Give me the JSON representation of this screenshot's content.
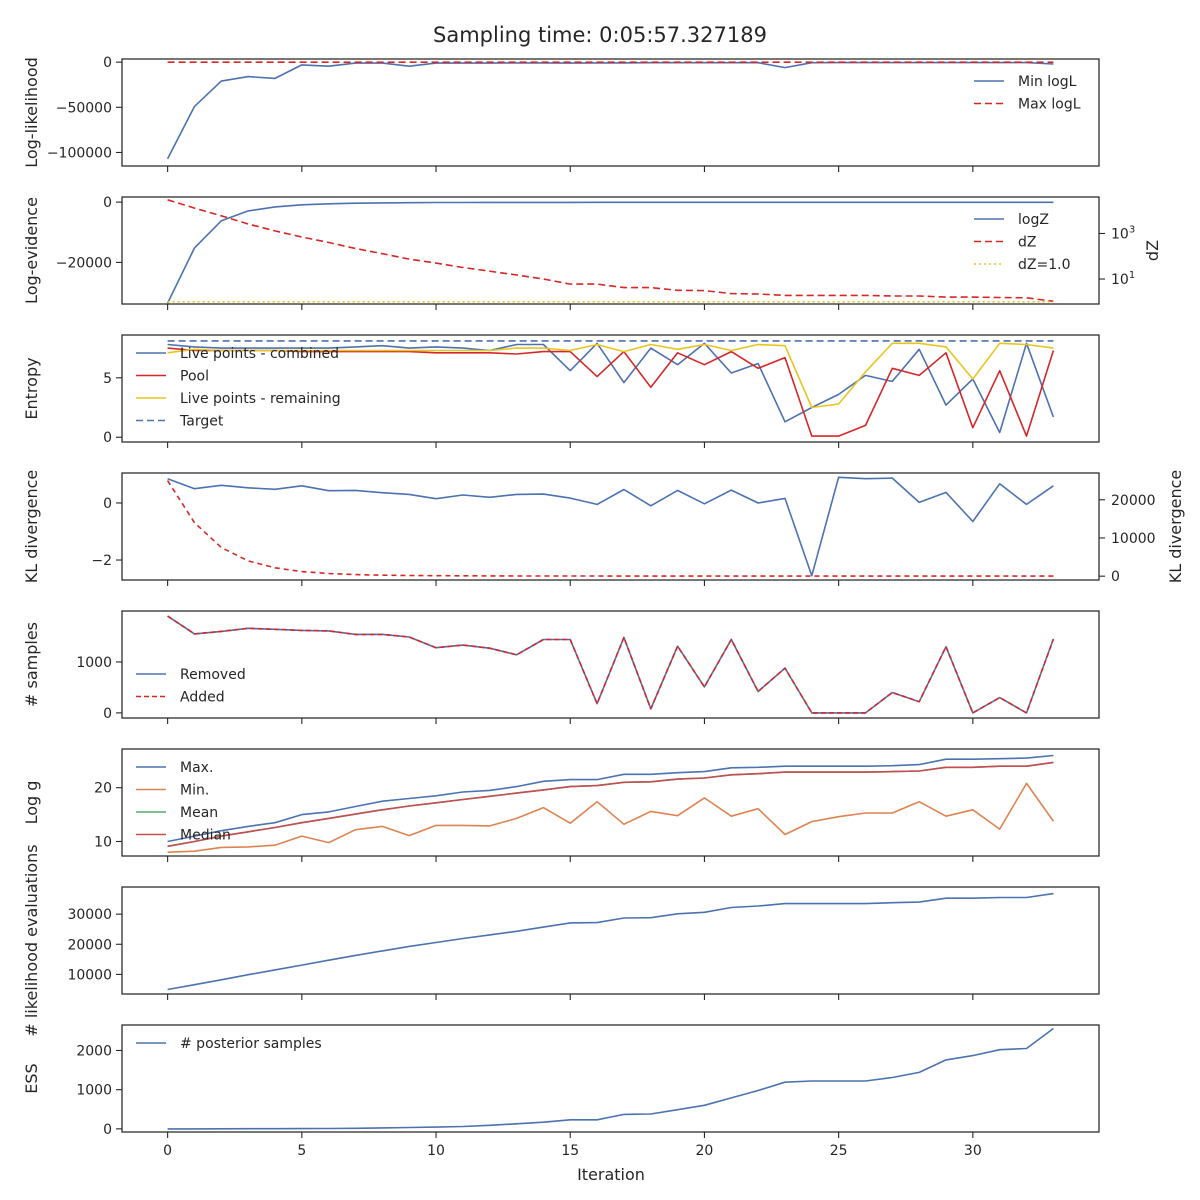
{
  "chart_data": {
    "type": "line",
    "title": "Sampling time: 0:05:57.327189",
    "xlabel": "Iteration",
    "x_ticks": [
      0,
      5,
      10,
      15,
      20,
      25,
      30
    ],
    "xlim": [
      -1.7,
      34.7
    ],
    "x": [
      0,
      1,
      2,
      3,
      4,
      5,
      6,
      7,
      8,
      9,
      10,
      11,
      12,
      13,
      14,
      15,
      16,
      17,
      18,
      19,
      20,
      21,
      22,
      23,
      24,
      25,
      26,
      27,
      28,
      29,
      30,
      31,
      32,
      33
    ],
    "panels": [
      {
        "ylabel": "Log-likelihood",
        "ylim": [
          -115000,
          3500
        ],
        "yticks": [
          {
            "v": 0,
            "t": "0"
          },
          {
            "v": -50000,
            "t": "−50000"
          },
          {
            "v": -100000,
            "t": "−100000"
          }
        ],
        "legend_pos": "right",
        "series": [
          {
            "name": "Min logL",
            "color": "#4c72b0",
            "dash": "",
            "values": [
              -107000,
              -49000,
              -21000,
              -16000,
              -18000,
              -3000,
              -4500,
              -1000,
              -1000,
              -4500,
              -1000,
              -1000,
              -1000,
              -800,
              -800,
              -1000,
              -800,
              -800,
              -600,
              -600,
              -600,
              -600,
              -600,
              -6000,
              -600,
              -500,
              -500,
              -500,
              -500,
              -500,
              -500,
              -500,
              -500,
              -2000
            ]
          },
          {
            "name": "Max logL",
            "color": "#d62728",
            "dash": "7,4",
            "values": [
              0,
              0,
              0,
              0,
              0,
              0,
              0,
              0,
              0,
              0,
              0,
              0,
              0,
              0,
              0,
              0,
              0,
              0,
              0,
              0,
              0,
              0,
              0,
              0,
              0,
              0,
              0,
              0,
              0,
              0,
              0,
              0,
              0,
              0
            ]
          }
        ]
      },
      {
        "ylabel": "Log-evidence",
        "ylim": [
          -33800,
          1700
        ],
        "yticks": [
          {
            "v": 0,
            "t": "0"
          },
          {
            "v": -20000,
            "t": "−20000"
          }
        ],
        "ylabel2": "dZ",
        "ylog2": true,
        "ylim2": [
          0.8,
          40000
        ],
        "yticks2": [
          {
            "v": 1000,
            "b": "10",
            "e": "3"
          },
          {
            "v": 10,
            "b": "10",
            "e": "1"
          }
        ],
        "legend_pos": "right",
        "series": [
          {
            "name": "logZ",
            "color": "#4c72b0",
            "dash": "",
            "values": [
              -33500,
              -15200,
              -6200,
              -2900,
              -1600,
              -900,
              -550,
              -350,
              -250,
              -180,
              -140,
              -120,
              -100,
              -90,
              -80,
              -75,
              -70,
              -65,
              -60,
              -58,
              -56,
              -54,
              -52,
              -51,
              -50,
              -50,
              -50,
              -50,
              -50,
              -50,
              -50,
              -50,
              -50,
              -50
            ]
          },
          {
            "name": "dZ",
            "color": "#d62728",
            "dash": "7,4",
            "axis": 2,
            "values": [
              30000,
              13000,
              6000,
              2600,
              1300,
              700,
              400,
              220,
              130,
              75,
              50,
              32,
              22,
              15,
              10,
              6,
              6,
              4.2,
              4.2,
              3.2,
              3.1,
              2.3,
              2.2,
              1.9,
              1.9,
              1.9,
              1.9,
              1.8,
              1.8,
              1.6,
              1.6,
              1.55,
              1.5,
              1.05
            ]
          },
          {
            "name": "dZ=1.0",
            "color": "#e8c51e",
            "dash": "2,3",
            "axis": 2,
            "values": [
              1,
              1,
              1,
              1,
              1,
              1,
              1,
              1,
              1,
              1,
              1,
              1,
              1,
              1,
              1,
              1,
              1,
              1,
              1,
              1,
              1,
              1,
              1,
              1,
              1,
              1,
              1,
              1,
              1,
              1,
              1,
              1,
              1,
              1
            ]
          }
        ]
      },
      {
        "ylabel": "Entropy",
        "ylim": [
          -0.4,
          8.6
        ],
        "yticks": [
          {
            "v": 5,
            "t": "5"
          },
          {
            "v": 0,
            "t": "0"
          }
        ],
        "legend_pos": "left",
        "series": [
          {
            "name": "Live points - combined",
            "color": "#4c72b0",
            "dash": "",
            "values": [
              7.8,
              7.6,
              7.5,
              7.5,
              7.5,
              7.5,
              7.5,
              7.6,
              7.7,
              7.5,
              7.6,
              7.5,
              7.3,
              7.8,
              7.8,
              5.6,
              7.9,
              4.6,
              7.5,
              6.1,
              7.9,
              5.4,
              6.2,
              1.3,
              2.5,
              3.6,
              5.2,
              4.7,
              7.4,
              2.7,
              4.9,
              0.4,
              7.9,
              1.7
            ]
          },
          {
            "name": "Pool",
            "color": "#d62728",
            "dash": "",
            "values": [
              7.5,
              7.3,
              7.3,
              7.3,
              7.3,
              7.2,
              7.2,
              7.2,
              7.2,
              7.2,
              7.1,
              7.1,
              7.1,
              7.0,
              7.2,
              7.2,
              5.1,
              7.2,
              4.2,
              7.1,
              6.1,
              7.2,
              5.8,
              6.7,
              0.1,
              0.1,
              1.0,
              5.8,
              5.2,
              7.1,
              0.8,
              5.6,
              0.1,
              7.3
            ]
          },
          {
            "name": "Live points - remaining",
            "color": "#e8c51e",
            "dash": "",
            "values": [
              7.1,
              7.4,
              7.3,
              7.3,
              7.3,
              7.3,
              7.3,
              7.3,
              7.3,
              7.3,
              7.3,
              7.3,
              7.3,
              7.5,
              7.5,
              7.3,
              7.8,
              7.2,
              7.8,
              7.4,
              7.8,
              7.3,
              7.8,
              7.7,
              2.5,
              2.8,
              5.5,
              7.9,
              7.9,
              7.6,
              4.9,
              7.9,
              7.8,
              7.5
            ]
          },
          {
            "name": "Target",
            "color": "#4c72b0",
            "dash": "7,4",
            "values": [
              8.1,
              8.1,
              8.1,
              8.1,
              8.1,
              8.1,
              8.1,
              8.1,
              8.1,
              8.1,
              8.1,
              8.1,
              8.1,
              8.1,
              8.1,
              8.1,
              8.1,
              8.1,
              8.1,
              8.1,
              8.1,
              8.1,
              8.1,
              8.1,
              8.1,
              8.1,
              8.1,
              8.1,
              8.1,
              8.1,
              8.1,
              8.1,
              8.1,
              8.1
            ]
          }
        ]
      },
      {
        "ylabel": "KL divergence",
        "ylim": [
          -2.7,
          1.05
        ],
        "yticks": [
          {
            "v": 0,
            "t": "0"
          },
          {
            "v": -2,
            "t": "−2"
          }
        ],
        "ylabel2": "KL divergence",
        "ylim2": [
          -1000,
          27000
        ],
        "yticks2": [
          {
            "v": 20000,
            "t": "20000"
          },
          {
            "v": 10000,
            "t": "10000"
          },
          {
            "v": 0,
            "t": "0"
          }
        ],
        "series": [
          {
            "name": "",
            "color": "#4c72b0",
            "dash": "",
            "values": [
              0.85,
              0.5,
              0.62,
              0.53,
              0.48,
              0.6,
              0.43,
              0.44,
              0.36,
              0.3,
              0.15,
              0.28,
              0.2,
              0.3,
              0.31,
              0.17,
              -0.05,
              0.47,
              -0.1,
              0.44,
              -0.03,
              0.45,
              0.0,
              0.16,
              -2.55,
              0.9,
              0.85,
              0.87,
              0.02,
              0.37,
              -0.65,
              0.67,
              -0.05,
              0.6
            ]
          },
          {
            "name": "",
            "color": "#d62728",
            "dash": "5,4",
            "axis": 2,
            "values": [
              25000,
              14000,
              7500,
              4000,
              2200,
              1200,
              700,
              400,
              250,
              170,
              120,
              90,
              70,
              55,
              45,
              40,
              35,
              30,
              28,
              26,
              25,
              24,
              23,
              22,
              21,
              21,
              20,
              20,
              20,
              19,
              19,
              19,
              19,
              18
            ]
          }
        ]
      },
      {
        "ylabel": "# samples",
        "ylim": [
          -100,
          2000
        ],
        "yticks": [
          {
            "v": 1000,
            "t": "1000"
          },
          {
            "v": 0,
            "t": "0"
          }
        ],
        "legend_pos": "left-mid",
        "series": [
          {
            "name": "Removed",
            "color": "#4c72b0",
            "dash": "",
            "values": [
              1900,
              1550,
              1600,
              1660,
              1640,
              1620,
              1610,
              1540,
              1540,
              1490,
              1280,
              1330,
              1270,
              1140,
              1440,
              1440,
              180,
              1480,
              80,
              1310,
              510,
              1440,
              420,
              880,
              0,
              0,
              0,
              400,
              220,
              1300,
              0,
              300,
              0,
              1450
            ]
          },
          {
            "name": "Added",
            "color": "#d62728",
            "dash": "5,3",
            "values": [
              1900,
              1550,
              1600,
              1660,
              1640,
              1620,
              1610,
              1540,
              1540,
              1490,
              1280,
              1330,
              1270,
              1140,
              1440,
              1440,
              180,
              1480,
              80,
              1310,
              510,
              1440,
              420,
              880,
              0,
              0,
              0,
              400,
              220,
              1300,
              0,
              300,
              0,
              1450
            ]
          }
        ]
      },
      {
        "ylabel": "Log g",
        "ylim": [
          7.3,
          27.2
        ],
        "yticks": [
          {
            "v": 20,
            "t": "20"
          },
          {
            "v": 10,
            "t": "10"
          }
        ],
        "legend_pos": "left",
        "series": [
          {
            "name": "Max.",
            "color": "#4c72b0",
            "dash": "",
            "values": [
              10.0,
              11.0,
              12.0,
              12.8,
              13.5,
              15.0,
              15.5,
              16.5,
              17.5,
              18.0,
              18.5,
              19.2,
              19.5,
              20.2,
              21.2,
              21.5,
              21.5,
              22.5,
              22.5,
              22.8,
              23.0,
              23.7,
              23.8,
              24.0,
              24.0,
              24.0,
              24.0,
              24.1,
              24.3,
              25.3,
              25.3,
              25.4,
              25.5,
              26.0
            ]
          },
          {
            "name": "Min.",
            "color": "#dd8452",
            "dash": "",
            "values": [
              8.0,
              8.2,
              8.9,
              9.0,
              9.3,
              11.0,
              9.8,
              12.2,
              12.8,
              11.1,
              13.0,
              13.0,
              12.9,
              14.3,
              16.3,
              13.4,
              17.4,
              13.2,
              15.6,
              14.8,
              18.1,
              14.7,
              16.1,
              11.3,
              13.7,
              14.6,
              15.3,
              15.3,
              17.4,
              14.7,
              15.9,
              12.3,
              20.8,
              13.8
            ]
          },
          {
            "name": "Mean",
            "color": "#55a868",
            "dash": "",
            "values": [
              9.1,
              10.0,
              11.0,
              11.8,
              12.6,
              13.5,
              14.3,
              15.1,
              15.9,
              16.6,
              17.2,
              17.8,
              18.4,
              19.0,
              19.6,
              20.2,
              20.4,
              21.0,
              21.1,
              21.6,
              21.8,
              22.4,
              22.6,
              22.9,
              22.9,
              22.9,
              22.9,
              23.0,
              23.1,
              23.8,
              23.8,
              24.0,
              24.0,
              24.7
            ]
          },
          {
            "name": "Median",
            "color": "#c44e52",
            "dash": "",
            "values": [
              9.1,
              10.0,
              11.0,
              11.8,
              12.6,
              13.5,
              14.3,
              15.1,
              15.9,
              16.6,
              17.2,
              17.8,
              18.4,
              19.0,
              19.6,
              20.2,
              20.4,
              21.0,
              21.1,
              21.6,
              21.8,
              22.4,
              22.6,
              22.9,
              22.9,
              22.9,
              22.9,
              23.0,
              23.1,
              23.8,
              23.8,
              24.0,
              24.0,
              24.7
            ]
          }
        ]
      },
      {
        "ylabel": "# likelihood evaluations",
        "ylim": [
          3500,
          39000
        ],
        "yticks": [
          {
            "v": 30000,
            "t": "30000"
          },
          {
            "v": 20000,
            "t": "20000"
          },
          {
            "v": 10000,
            "t": "10000"
          }
        ],
        "series": [
          {
            "name": "",
            "color": "#4c72b0",
            "dash": "",
            "values": [
              5000,
              6600,
              8200,
              9900,
              11500,
              13100,
              14700,
              16300,
              17800,
              19300,
              20600,
              21900,
              23100,
              24300,
              25700,
              27100,
              27200,
              28700,
              28800,
              30100,
              30600,
              32200,
              32700,
              33500,
              33500,
              33500,
              33500,
              33800,
              34000,
              35300,
              35300,
              35500,
              35500,
              36800
            ]
          }
        ]
      },
      {
        "ylabel": "ESS",
        "ylim": [
          -80,
          2650
        ],
        "yticks": [
          {
            "v": 2000,
            "t": "2000"
          },
          {
            "v": 1000,
            "t": "1000"
          },
          {
            "v": 0,
            "t": "0"
          }
        ],
        "legend_pos": "left",
        "series": [
          {
            "name": "# posterior samples",
            "color": "#4c72b0",
            "dash": "",
            "values": [
              0,
              0,
              2,
              3,
              4,
              6,
              10,
              15,
              25,
              35,
              45,
              60,
              90,
              130,
              170,
              230,
              230,
              370,
              380,
              490,
              600,
              790,
              980,
              1190,
              1220,
              1220,
              1220,
              1310,
              1440,
              1760,
              1870,
              2020,
              2050,
              2560
            ]
          }
        ]
      }
    ]
  }
}
